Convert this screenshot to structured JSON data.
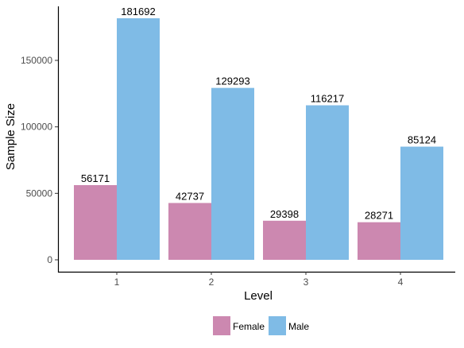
{
  "chart_data": {
    "type": "bar",
    "categories": [
      "1",
      "2",
      "3",
      "4"
    ],
    "series": [
      {
        "name": "Female",
        "color": "#cc88b0",
        "values": [
          56171,
          42737,
          29398,
          28271
        ]
      },
      {
        "name": "Male",
        "color": "#7fbbe6",
        "values": [
          181692,
          129293,
          116217,
          85124
        ]
      }
    ],
    "xlabel": "Level",
    "ylabel": "Sample Size",
    "ylim": [
      0,
      190000
    ],
    "yticks": [
      0,
      50000,
      100000,
      150000
    ],
    "grid": false,
    "legend_position": "bottom"
  }
}
